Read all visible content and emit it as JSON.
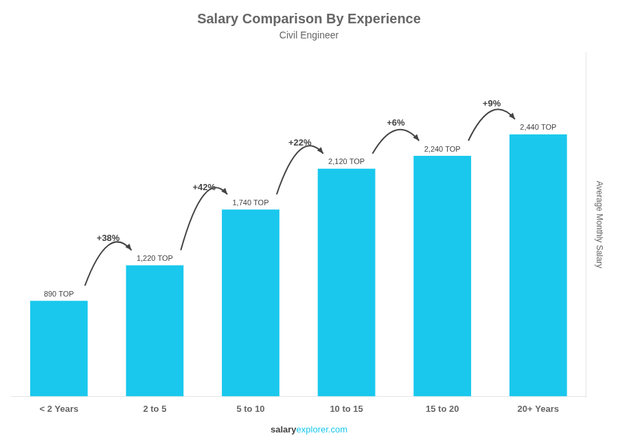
{
  "chart_data": {
    "type": "bar",
    "title": "Salary Comparison By Experience",
    "subtitle": "Civil Engineer",
    "ylabel": "Average Monthly Salary",
    "categories": [
      "< 2 Years",
      "2 to 5",
      "5 to 10",
      "10 to 15",
      "15 to 20",
      "20+ Years"
    ],
    "values": [
      890,
      1220,
      1740,
      2120,
      2240,
      2440
    ],
    "value_labels": [
      "890 TOP",
      "1,220 TOP",
      "1,740 TOP",
      "2,120 TOP",
      "2,240 TOP",
      "2,440 TOP"
    ],
    "data_labels": true,
    "color": "#1AC8ED",
    "ylim": [
      0,
      3200
    ],
    "grid": false,
    "tick_labels": "x",
    "annotations": [
      {
        "text": "+38%",
        "from": "< 2 Years",
        "to": "2 to 5"
      },
      {
        "text": "+42%",
        "from": "2 to 5",
        "to": "5 to 10"
      },
      {
        "text": "+22%",
        "from": "5 to 10",
        "to": "10 to 15"
      },
      {
        "text": "+6%",
        "from": "10 to 15",
        "to": "15 to 20"
      },
      {
        "text": "+9%",
        "from": "15 to 20",
        "to": "20+ Years"
      }
    ],
    "footer": [
      "salary",
      "explorer.com"
    ]
  }
}
